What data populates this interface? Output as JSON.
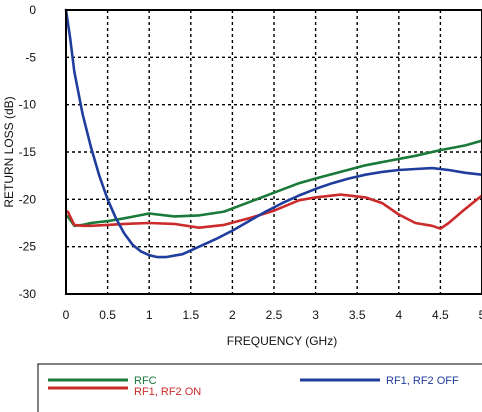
{
  "chart_data": {
    "type": "line",
    "title": "",
    "xlabel": "FREQUENCY (GHz)",
    "ylabel": "RETURN LOSS (dB)",
    "xlim": [
      0,
      5
    ],
    "ylim": [
      -30,
      0
    ],
    "x_ticks": [
      0,
      0.5,
      1,
      1.5,
      2,
      2.5,
      3,
      3.5,
      4,
      4.5,
      5
    ],
    "x_tick_labels": [
      "0",
      "0.5",
      "1",
      "1.5",
      "2",
      "2.5",
      "3",
      "3.5",
      "4",
      "4.5",
      "5"
    ],
    "y_ticks": [
      0,
      -5,
      -10,
      -15,
      -20,
      -25,
      -30
    ],
    "y_tick_labels": [
      "0",
      "-5",
      "-10",
      "-15",
      "-20",
      "-25",
      "-30"
    ],
    "grid": true,
    "legend_position": "bottom",
    "series": [
      {
        "name": "RFC",
        "color": "#1a7a3a",
        "x": [
          0.02,
          0.1,
          0.2,
          0.3,
          0.5,
          0.7,
          1.0,
          1.3,
          1.6,
          1.9,
          2.2,
          2.5,
          2.8,
          3.0,
          3.3,
          3.6,
          3.9,
          4.2,
          4.5,
          4.8,
          5.0
        ],
        "y": [
          -21.8,
          -22.8,
          -22.7,
          -22.5,
          -22.3,
          -22.0,
          -21.5,
          -21.8,
          -21.7,
          -21.3,
          -20.3,
          -19.3,
          -18.3,
          -17.8,
          -17.1,
          -16.4,
          -15.9,
          -15.4,
          -14.8,
          -14.3,
          -13.8
        ]
      },
      {
        "name": "RF1, RF2 ON",
        "color": "#cc2b2b",
        "x": [
          0.02,
          0.1,
          0.2,
          0.3,
          0.5,
          0.7,
          1.0,
          1.3,
          1.6,
          1.9,
          2.2,
          2.5,
          2.8,
          3.0,
          3.3,
          3.6,
          3.8,
          4.0,
          4.2,
          4.4,
          4.5,
          4.6,
          4.8,
          5.0
        ],
        "y": [
          -21.3,
          -22.7,
          -22.8,
          -22.8,
          -22.7,
          -22.6,
          -22.5,
          -22.6,
          -23.0,
          -22.7,
          -22.0,
          -21.2,
          -20.1,
          -19.8,
          -19.5,
          -19.8,
          -20.4,
          -21.6,
          -22.5,
          -22.8,
          -23.1,
          -22.5,
          -21.0,
          -19.6
        ]
      },
      {
        "name": "RF1, RF2 OFF",
        "color": "#1f3d9c",
        "x": [
          0.0,
          0.05,
          0.1,
          0.2,
          0.3,
          0.4,
          0.5,
          0.6,
          0.7,
          0.8,
          0.9,
          1.0,
          1.1,
          1.2,
          1.4,
          1.6,
          1.8,
          2.0,
          2.2,
          2.4,
          2.6,
          2.8,
          3.0,
          3.2,
          3.4,
          3.6,
          3.8,
          4.0,
          4.2,
          4.4,
          4.6,
          4.8,
          5.0
        ],
        "y": [
          0.0,
          -3.0,
          -6.5,
          -11.0,
          -14.5,
          -17.5,
          -20.0,
          -22.0,
          -23.6,
          -24.8,
          -25.5,
          -25.9,
          -26.1,
          -26.1,
          -25.8,
          -25.0,
          -24.2,
          -23.3,
          -22.3,
          -21.3,
          -20.4,
          -19.6,
          -18.9,
          -18.3,
          -17.8,
          -17.4,
          -17.1,
          -16.9,
          -16.8,
          -16.7,
          -16.9,
          -17.2,
          -17.4
        ]
      }
    ]
  }
}
